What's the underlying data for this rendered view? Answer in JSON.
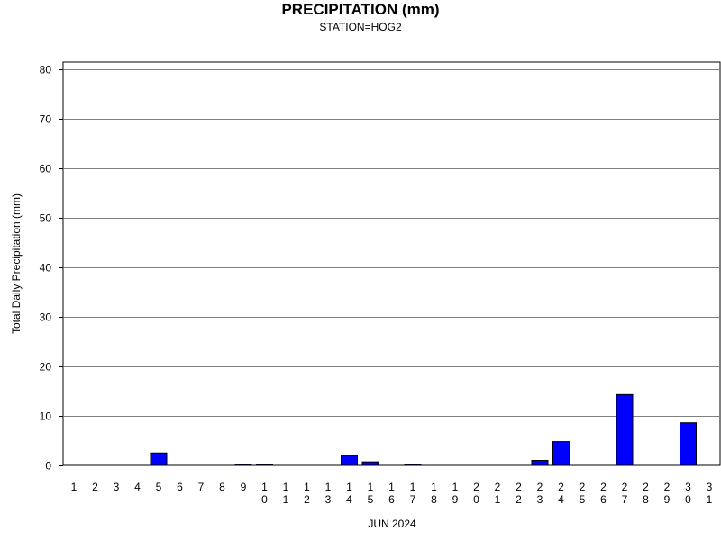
{
  "chart_data": {
    "type": "bar",
    "title": "PRECIPITATION (mm)",
    "subtitle": "STATION=HOG2",
    "xlabel": "JUN 2024",
    "ylabel": "Total Daily Precipitation (mm)",
    "ylim": [
      0,
      80
    ],
    "yticks": [
      0,
      10,
      20,
      30,
      40,
      50,
      60,
      70,
      80
    ],
    "grid": true,
    "bar_color": "#0000ff",
    "categories": [
      "1",
      "2",
      "3",
      "4",
      "5",
      "6",
      "7",
      "8",
      "9",
      "10",
      "11",
      "12",
      "13",
      "14",
      "15",
      "16",
      "17",
      "18",
      "19",
      "20",
      "21",
      "22",
      "23",
      "24",
      "25",
      "26",
      "27",
      "28",
      "29",
      "30",
      "31"
    ],
    "values": [
      0,
      0,
      0,
      0,
      2.5,
      0,
      0,
      0,
      0.2,
      0.2,
      0,
      0,
      0,
      2.0,
      0.7,
      0,
      0.2,
      0,
      0,
      0,
      0,
      0,
      1.0,
      4.8,
      0,
      0,
      14.3,
      0,
      0,
      8.6,
      0
    ]
  }
}
